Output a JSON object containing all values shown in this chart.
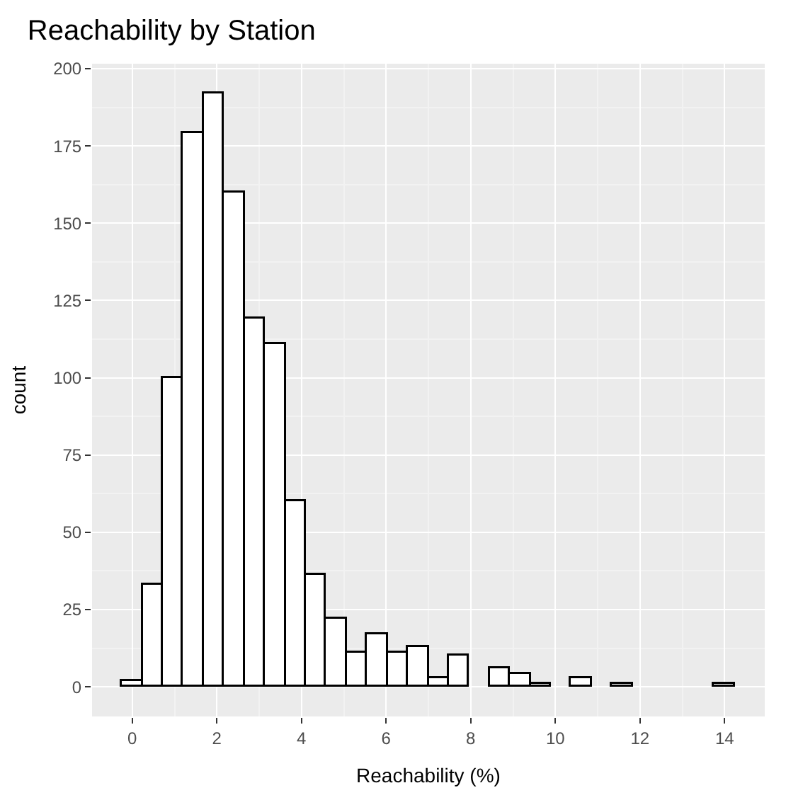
{
  "chart_data": {
    "type": "histogram",
    "title": "Reachability by Station",
    "xlabel": "Reachability (%)",
    "ylabel": "count",
    "bins": [
      -0.2414,
      0.2414,
      0.7241,
      1.2069,
      1.6897,
      2.1724,
      2.6552,
      3.1379,
      3.6207,
      4.1034,
      4.5862,
      5.069,
      5.5517,
      6.0345,
      6.5172,
      7.0,
      7.4828,
      7.9655,
      8.4483,
      8.931,
      9.4138,
      9.8966,
      10.3793,
      10.8621,
      11.3448,
      11.8276,
      12.3103,
      12.7931,
      13.2759,
      13.7586,
      14.2414
    ],
    "values": [
      2,
      33,
      100,
      179,
      192,
      160,
      119,
      111,
      60,
      36,
      22,
      11,
      17,
      11,
      13,
      3,
      10,
      0,
      6,
      4,
      1,
      0,
      3,
      0,
      1,
      0,
      0,
      0,
      0,
      1
    ],
    "color": "#ffffff",
    "xlim": [
      -0.95,
      14.95
    ],
    "xticks": [
      0,
      2,
      4,
      6,
      8,
      10,
      12,
      14
    ],
    "ylim": [
      -9.6,
      201.6
    ],
    "yticks": [
      0,
      25,
      50,
      75,
      100,
      125,
      150,
      175,
      200
    ],
    "grid": true
  }
}
